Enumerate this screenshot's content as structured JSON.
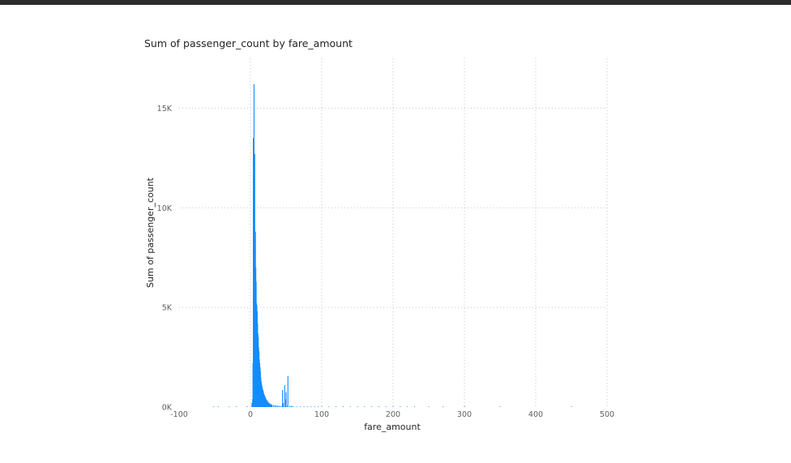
{
  "chart_data": {
    "type": "bar",
    "title": "Sum of passenger_count by fare_amount",
    "xlabel": "fare_amount",
    "ylabel": "Sum of passenger_count",
    "xlim": [
      -100,
      500
    ],
    "ylim": [
      0,
      17500
    ],
    "x_ticks": [
      -100,
      0,
      100,
      200,
      300,
      400,
      500
    ],
    "x_tick_labels": [
      "-100",
      "0",
      "100",
      "200",
      "300",
      "400",
      "500"
    ],
    "y_ticks": [
      0,
      5000,
      10000,
      15000
    ],
    "y_tick_labels": [
      "0K",
      "5K",
      "10K",
      "15K"
    ],
    "grid": true,
    "bar_color": "#118DFF",
    "x": [
      -52,
      -45,
      -30,
      -20,
      -5,
      2,
      3,
      3.5,
      4,
      4.5,
      5,
      5.5,
      6,
      6.5,
      7,
      7.5,
      8,
      8.5,
      9,
      9.5,
      10,
      10.5,
      11,
      11.5,
      12,
      12.5,
      13,
      13.5,
      14,
      14.5,
      15,
      15.5,
      16,
      16.5,
      17,
      17.5,
      18,
      18.5,
      19,
      19.5,
      20,
      21,
      22,
      23,
      24,
      25,
      26,
      27,
      28,
      29,
      30,
      32,
      34,
      36,
      38,
      40,
      42,
      44,
      45,
      46,
      48,
      49.5,
      50,
      52,
      52.5,
      55,
      57,
      58,
      60,
      65,
      70,
      75,
      80,
      85,
      90,
      95,
      100,
      110,
      120,
      130,
      140,
      150,
      160,
      170,
      180,
      190,
      200,
      210,
      220,
      230,
      250,
      270,
      300,
      350,
      450
    ],
    "values": [
      30,
      20,
      20,
      25,
      40,
      200,
      400,
      2200,
      13500,
      6000,
      16200,
      9800,
      12700,
      8000,
      8800,
      7000,
      6300,
      5200,
      5100,
      4800,
      4200,
      3700,
      3500,
      3000,
      2800,
      2400,
      2200,
      2000,
      1800,
      1500,
      1300,
      1200,
      1100,
      1000,
      900,
      850,
      800,
      700,
      650,
      600,
      550,
      500,
      400,
      350,
      300,
      250,
      200,
      180,
      150,
      140,
      120,
      100,
      90,
      80,
      70,
      60,
      55,
      50,
      850,
      200,
      1100,
      400,
      750,
      80,
      1550,
      60,
      40,
      60,
      35,
      30,
      25,
      22,
      20,
      18,
      15,
      12,
      25,
      15,
      12,
      10,
      8,
      8,
      6,
      6,
      5,
      5,
      10,
      4,
      4,
      8,
      3,
      3,
      5,
      20,
      5
    ]
  }
}
